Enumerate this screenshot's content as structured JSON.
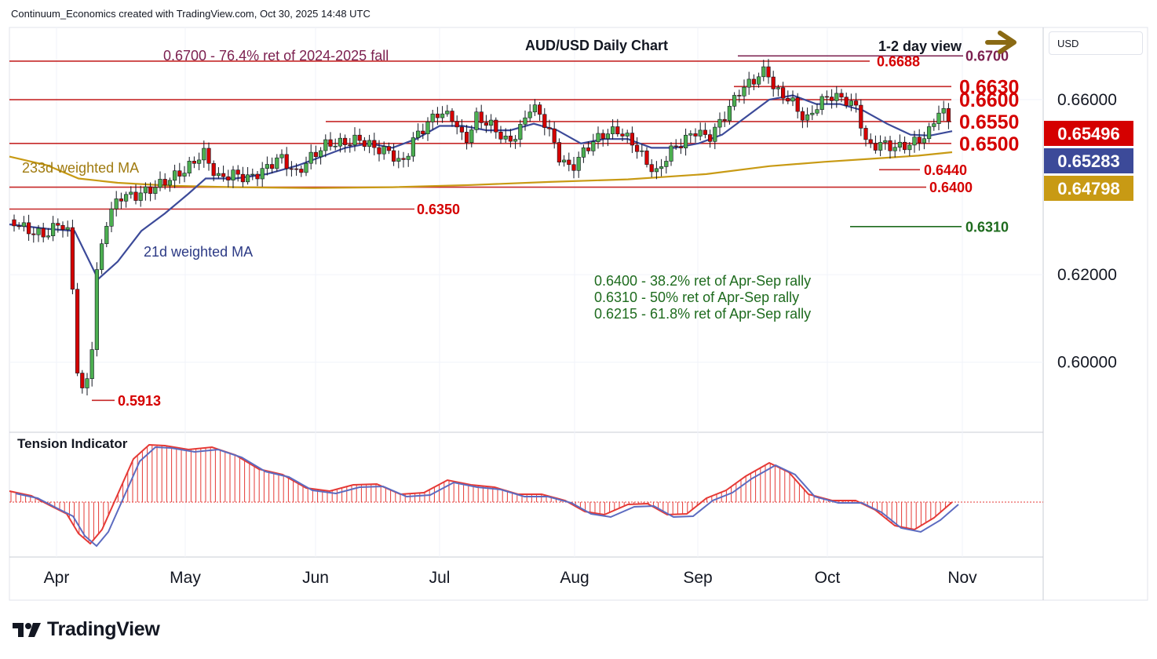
{
  "header": {
    "text": "Continuum_Economics created with TradingView.com, Oct 30, 2025 14:48 UTC"
  },
  "currency": "USD",
  "brand": "TradingView",
  "chart_data": {
    "type": "candlestick",
    "title": "AUD/USD Daily Chart",
    "view_label": "1-2 day view",
    "ylim": [
      0.584,
      0.6765
    ],
    "y_ticks": [
      0.6,
      0.62,
      0.66
    ],
    "y_tick_labels": [
      "0.60000",
      "0.62000",
      "0.66000"
    ],
    "x_ticks": [
      "Apr",
      "May",
      "Jun",
      "Jul",
      "Aug",
      "Sep",
      "Oct",
      "Nov"
    ],
    "price_labels": [
      {
        "value": "0.65496",
        "price": 0.65496,
        "color": "#d50000"
      },
      {
        "value": "0.65283",
        "price": 0.65283,
        "color": "#3c4a99"
      },
      {
        "value": "0.64798",
        "price": 0.64798,
        "color": "#c89a14"
      }
    ],
    "annotations": {
      "fib_note": "0.6700 - 76.4% ret of 2024-2025 fall",
      "ma233": "233d weighted MA",
      "ma21": "21d weighted MA",
      "ret1": "0.6400 - 38.2% ret of Apr-Sep rally",
      "ret2": "0.6310 - 50% ret of Apr-Sep rally",
      "ret3": "0.6215 - 61.8% ret of Apr-Sep rally",
      "tension": "Tension Indicator"
    },
    "levels": [
      {
        "label": "0.6700",
        "price": 0.67,
        "color": "#7b1f4f"
      },
      {
        "label": "0.6688",
        "price": 0.6688,
        "color": "#d50000"
      },
      {
        "label": "0.6630",
        "price": 0.663,
        "color": "#d50000"
      },
      {
        "label": "0.6600",
        "price": 0.66,
        "color": "#d50000"
      },
      {
        "label": "0.6550",
        "price": 0.655,
        "color": "#d50000"
      },
      {
        "label": "0.6500",
        "price": 0.65,
        "color": "#d50000"
      },
      {
        "label": "0.6440",
        "price": 0.644,
        "color": "#d50000"
      },
      {
        "label": "0.6400",
        "price": 0.64,
        "color": "#d50000"
      },
      {
        "label": "0.6350",
        "price": 0.635,
        "color": "#d50000"
      },
      {
        "label": "0.6310",
        "price": 0.631,
        "color": "#1e6b1e"
      },
      {
        "label": "0.5913",
        "price": 0.5913,
        "color": "#d50000"
      }
    ],
    "colors": {
      "up": "#1e6b1e",
      "down": "#d50000",
      "ma21": "#3c4a99",
      "ma233": "#c89a14",
      "tension_main": "#e53935",
      "tension_signal": "#5c6bc0"
    }
  }
}
